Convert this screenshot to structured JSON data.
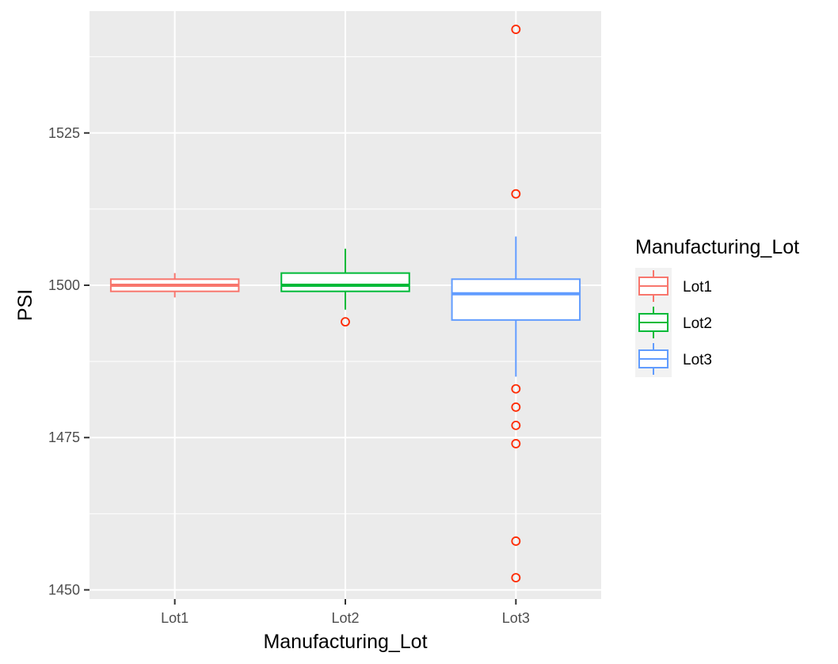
{
  "chart_data": {
    "type": "boxplot",
    "xlabel": "Manufacturing_Lot",
    "ylabel": "PSI",
    "categories": [
      "Lot1",
      "Lot2",
      "Lot3"
    ],
    "ylim": [
      1448.5,
      1545
    ],
    "yticks": [
      1450,
      1475,
      1500,
      1525
    ],
    "ytick_labels": [
      "1450",
      "1475",
      "1500",
      "1525"
    ],
    "grid": true,
    "legend": {
      "title": "Manufacturing_Lot",
      "placement": "right",
      "entries": [
        "Lot1",
        "Lot2",
        "Lot3"
      ]
    },
    "series": [
      {
        "name": "Lot1",
        "color": "#F8766D",
        "min": 1498,
        "q1": 1499,
        "median": 1500,
        "q3": 1501,
        "max": 1502,
        "outliers": []
      },
      {
        "name": "Lot2",
        "color": "#00BA38",
        "min": 1496,
        "q1": 1499,
        "median": 1500,
        "q3": 1502,
        "max": 1506,
        "outliers": [
          1494
        ]
      },
      {
        "name": "Lot3",
        "color": "#619CFF",
        "min": 1485,
        "q1": 1494.3,
        "median": 1498.6,
        "q3": 1501,
        "max": 1508,
        "outliers": [
          1542,
          1515,
          1483,
          1480,
          1477,
          1474,
          1458,
          1452
        ]
      }
    ],
    "outlier_color": "#FF2A00",
    "panel_color": "#EBEBEB",
    "grid_color": "#FFFFFF"
  }
}
